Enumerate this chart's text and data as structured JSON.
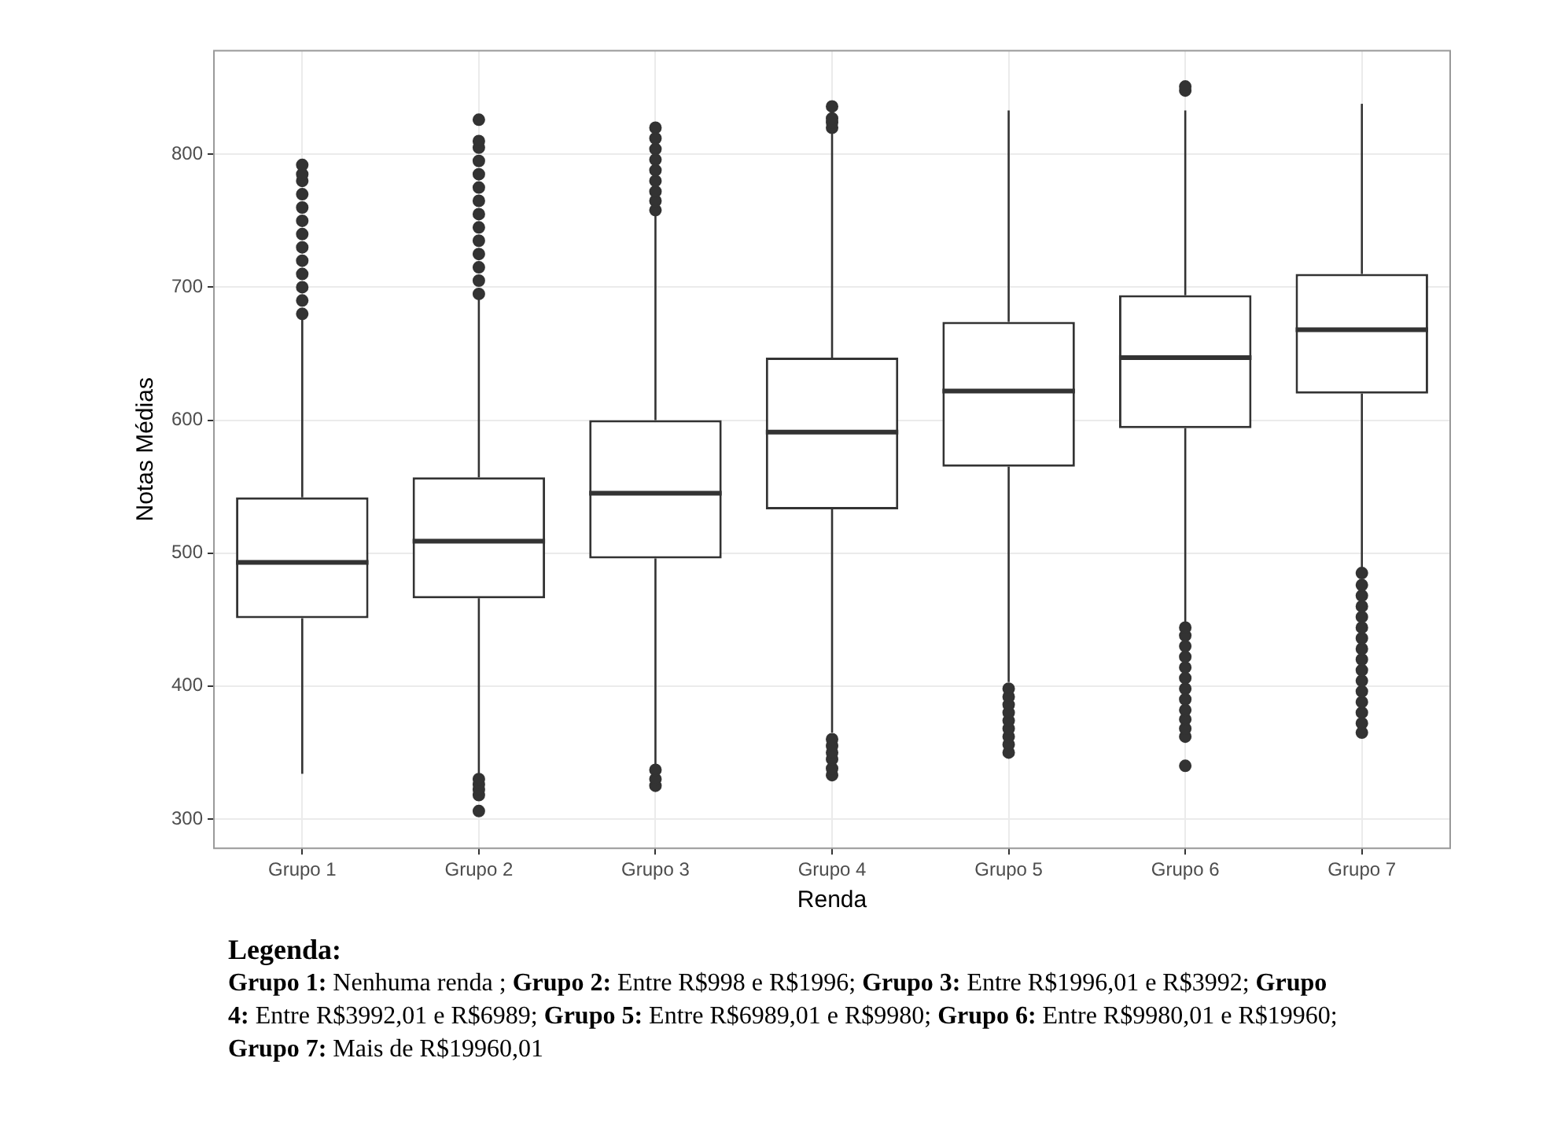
{
  "chart_data": {
    "type": "box",
    "xlabel": "Renda",
    "ylabel": "Notas Médias",
    "categories": [
      "Grupo 1",
      "Grupo 2",
      "Grupo 3",
      "Grupo 4",
      "Grupo 5",
      "Grupo 6",
      "Grupo 7"
    ],
    "boxes": [
      {
        "low": 334,
        "q1": 451,
        "median": 493,
        "q3": 542,
        "high": 676,
        "outliers": [
          680,
          690,
          700,
          710,
          720,
          730,
          740,
          750,
          760,
          770,
          780,
          785,
          792
        ]
      },
      {
        "low": 332,
        "q1": 466,
        "median": 509,
        "q3": 557,
        "high": 692,
        "outliers": [
          306,
          318,
          322,
          326,
          330,
          695,
          705,
          715,
          725,
          735,
          745,
          755,
          765,
          775,
          785,
          795,
          805,
          810,
          826
        ]
      },
      {
        "low": 341,
        "q1": 496,
        "median": 545,
        "q3": 600,
        "high": 755,
        "outliers": [
          325,
          330,
          337,
          758,
          765,
          772,
          780,
          788,
          796,
          804,
          812,
          820
        ]
      },
      {
        "low": 365,
        "q1": 533,
        "median": 591,
        "q3": 647,
        "high": 818,
        "outliers": [
          333,
          338,
          345,
          350,
          355,
          360,
          820,
          824,
          827,
          836
        ]
      },
      {
        "low": 403,
        "q1": 565,
        "median": 622,
        "q3": 674,
        "high": 833,
        "outliers": [
          350,
          356,
          362,
          368,
          374,
          380,
          386,
          392,
          398
        ]
      },
      {
        "low": 447,
        "q1": 594,
        "median": 647,
        "q3": 694,
        "high": 833,
        "outliers": [
          340,
          362,
          368,
          375,
          382,
          390,
          398,
          406,
          414,
          422,
          430,
          438,
          444,
          848,
          851
        ]
      },
      {
        "low": 488,
        "q1": 620,
        "median": 668,
        "q3": 710,
        "high": 838,
        "outliers": [
          365,
          372,
          380,
          388,
          396,
          404,
          412,
          420,
          428,
          436,
          444,
          452,
          460,
          468,
          476,
          485
        ]
      }
    ],
    "ylim": [
      278,
      878
    ],
    "yticks": [
      300,
      400,
      500,
      600,
      700,
      800
    ],
    "grid": true,
    "legend": false,
    "annotations": [
      "Legenda:",
      "Grupo 1:",
      "Nenhuma renda ;",
      "Grupo 2:",
      "Entre R$998 e R$1996;",
      "Grupo 3:",
      "Entre R$1996,01 e R$3992;",
      "Grupo 4:",
      "Entre R$3992,01 e R$6989;",
      "Grupo 5:",
      "Entre R$6989,01 e R$9980;",
      "Grupo 6:",
      "Entre R$9980,01 e R$19960;",
      "Grupo 7:",
      "Mais de R$19960,01"
    ]
  }
}
